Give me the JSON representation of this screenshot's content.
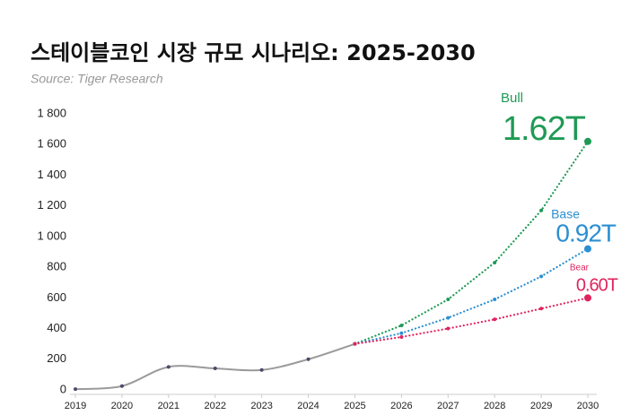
{
  "chart_data": {
    "type": "line",
    "title": "스테이블코인 시장 규모 시나리오: 2025-2030",
    "subtitle": "Source: Tiger Research",
    "xlim": [
      2019,
      2030
    ],
    "xticks": [
      2019,
      2020,
      2021,
      2022,
      2023,
      2024,
      2025,
      2026,
      2027,
      2028,
      2029,
      2030
    ],
    "ylim": [
      0,
      1800
    ],
    "yticks": [
      0,
      200,
      400,
      600,
      800,
      {
        "value": 1000,
        "label": "1 000"
      },
      {
        "value": 1200,
        "label": "1 200"
      },
      {
        "value": 1400,
        "label": "1 400"
      },
      {
        "value": 1600,
        "label": "1 600"
      },
      {
        "value": 1800,
        "label": "1 800"
      }
    ],
    "grid": false,
    "series": [
      {
        "color": "#9a9a9a",
        "style": "solid",
        "x": [
          2019,
          2020,
          2021,
          2022,
          2023,
          2024,
          2025
        ],
        "values": [
          5,
          25,
          150,
          140,
          130,
          200,
          300
        ]
      },
      {
        "name": "Bull",
        "color": "#1f9a55",
        "style": "dotted",
        "x": [
          2025,
          2026,
          2027,
          2028,
          2029,
          2030
        ],
        "values": [
          300,
          420,
          590,
          830,
          1170,
          1620
        ],
        "value_labels": [
          null,
          null,
          null,
          null,
          null,
          "1.62T"
        ]
      },
      {
        "name": "Base",
        "color": "#2b8fd1",
        "style": "dotted",
        "x": [
          2025,
          2026,
          2027,
          2028,
          2029,
          2030
        ],
        "values": [
          300,
          370,
          470,
          590,
          740,
          920
        ],
        "value_labels": [
          null,
          null,
          null,
          null,
          null,
          "0.92T"
        ]
      },
      {
        "name": "Bear",
        "color": "#e0245e",
        "style": "dotted",
        "x": [
          2025,
          2026,
          2027,
          2028,
          2029,
          2030
        ],
        "values": [
          300,
          345,
          400,
          460,
          530,
          600
        ],
        "value_labels": [
          null,
          null,
          null,
          null,
          null,
          "0.60T"
        ]
      }
    ]
  }
}
